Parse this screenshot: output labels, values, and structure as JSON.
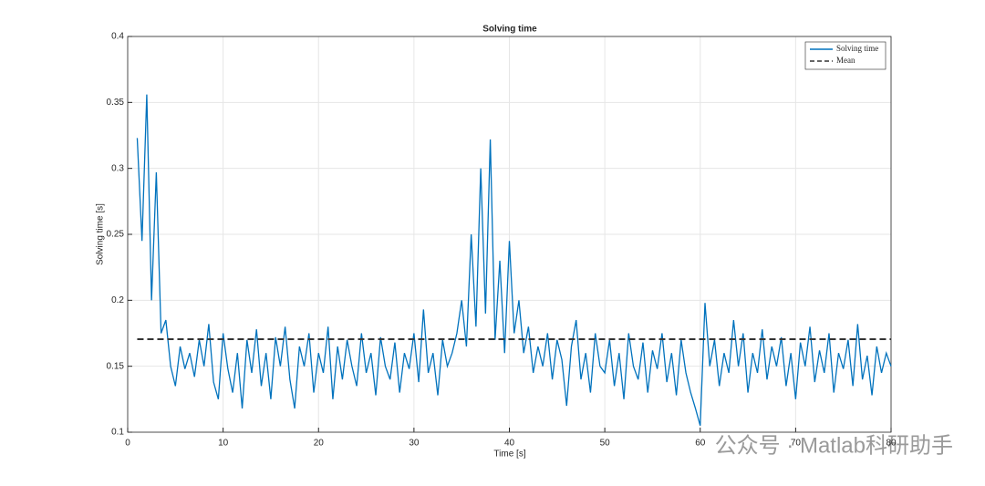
{
  "chart_data": {
    "type": "line",
    "title": "Solving time",
    "xlabel": "Time [s]",
    "ylabel": "Solving time [s]",
    "xlim": [
      0,
      80
    ],
    "ylim": [
      0.1,
      0.4
    ],
    "xticks": [
      0,
      10,
      20,
      30,
      40,
      50,
      60,
      70,
      80
    ],
    "yticks": [
      0.1,
      0.15,
      0.2,
      0.25,
      0.3,
      0.35,
      0.4
    ],
    "grid": true,
    "legend": "upper right",
    "series": [
      {
        "name": "Solving time",
        "color": "#0072bd",
        "style": "solid",
        "x": [
          1,
          1.5,
          2,
          2.5,
          3,
          3.5,
          4,
          4.5,
          5,
          5.5,
          6,
          6.5,
          7,
          7.5,
          8,
          8.5,
          9,
          9.5,
          10,
          10.5,
          11,
          11.5,
          12,
          12.5,
          13,
          13.5,
          14,
          14.5,
          15,
          15.5,
          16,
          16.5,
          17,
          17.5,
          18,
          18.5,
          19,
          19.5,
          20,
          20.5,
          21,
          21.5,
          22,
          22.5,
          23,
          23.5,
          24,
          24.5,
          25,
          25.5,
          26,
          26.5,
          27,
          27.5,
          28,
          28.5,
          29,
          29.5,
          30,
          30.5,
          31,
          31.5,
          32,
          32.5,
          33,
          33.5,
          34,
          34.5,
          35,
          35.5,
          36,
          36.5,
          37,
          37.5,
          38,
          38.5,
          39,
          39.5,
          40,
          40.5,
          41,
          41.5,
          42,
          42.5,
          43,
          43.5,
          44,
          44.5,
          45,
          45.5,
          46,
          46.5,
          47,
          47.5,
          48,
          48.5,
          49,
          49.5,
          50,
          50.5,
          51,
          51.5,
          52,
          52.5,
          53,
          53.5,
          54,
          54.5,
          55,
          55.5,
          56,
          56.5,
          57,
          57.5,
          58,
          58.5,
          59,
          59.5,
          60,
          60.5,
          61,
          61.5,
          62,
          62.5,
          63,
          63.5,
          64,
          64.5,
          65,
          65.5,
          66,
          66.5,
          67,
          67.5,
          68,
          68.5,
          69,
          69.5,
          70,
          70.5,
          71,
          71.5,
          72,
          72.5,
          73,
          73.5,
          74,
          74.5,
          75,
          75.5,
          76,
          76.5,
          77,
          77.5,
          78,
          78.5,
          79,
          79.5,
          80
        ],
        "values": [
          0.323,
          0.245,
          0.356,
          0.2,
          0.297,
          0.175,
          0.185,
          0.15,
          0.135,
          0.165,
          0.148,
          0.16,
          0.142,
          0.17,
          0.15,
          0.182,
          0.138,
          0.125,
          0.175,
          0.148,
          0.13,
          0.16,
          0.118,
          0.17,
          0.145,
          0.178,
          0.135,
          0.16,
          0.125,
          0.172,
          0.15,
          0.18,
          0.14,
          0.118,
          0.165,
          0.15,
          0.175,
          0.13,
          0.16,
          0.145,
          0.18,
          0.125,
          0.165,
          0.14,
          0.17,
          0.15,
          0.135,
          0.175,
          0.145,
          0.16,
          0.128,
          0.172,
          0.15,
          0.14,
          0.168,
          0.13,
          0.16,
          0.148,
          0.175,
          0.138,
          0.193,
          0.145,
          0.16,
          0.128,
          0.17,
          0.15,
          0.16,
          0.175,
          0.2,
          0.165,
          0.25,
          0.18,
          0.3,
          0.19,
          0.322,
          0.17,
          0.23,
          0.16,
          0.245,
          0.175,
          0.2,
          0.16,
          0.18,
          0.145,
          0.165,
          0.15,
          0.175,
          0.14,
          0.17,
          0.155,
          0.12,
          0.165,
          0.185,
          0.14,
          0.16,
          0.13,
          0.175,
          0.15,
          0.145,
          0.17,
          0.135,
          0.16,
          0.125,
          0.175,
          0.15,
          0.14,
          0.168,
          0.13,
          0.162,
          0.148,
          0.175,
          0.138,
          0.16,
          0.128,
          0.17,
          0.145,
          0.13,
          0.118,
          0.105,
          0.198,
          0.15,
          0.17,
          0.135,
          0.16,
          0.145,
          0.185,
          0.15,
          0.175,
          0.13,
          0.16,
          0.145,
          0.178,
          0.14,
          0.165,
          0.15,
          0.172,
          0.135,
          0.16,
          0.125,
          0.168,
          0.15,
          0.18,
          0.138,
          0.162,
          0.145,
          0.175,
          0.13,
          0.16,
          0.148,
          0.17,
          0.135,
          0.182,
          0.14,
          0.158,
          0.128,
          0.165,
          0.145,
          0.16,
          0.15
        ]
      },
      {
        "name": "Mean",
        "color": "#333333",
        "style": "dashed",
        "x": [
          1,
          80
        ],
        "values": [
          0.1705,
          0.1705
        ]
      }
    ]
  },
  "watermark": "公众号 · Matlab科研助手"
}
